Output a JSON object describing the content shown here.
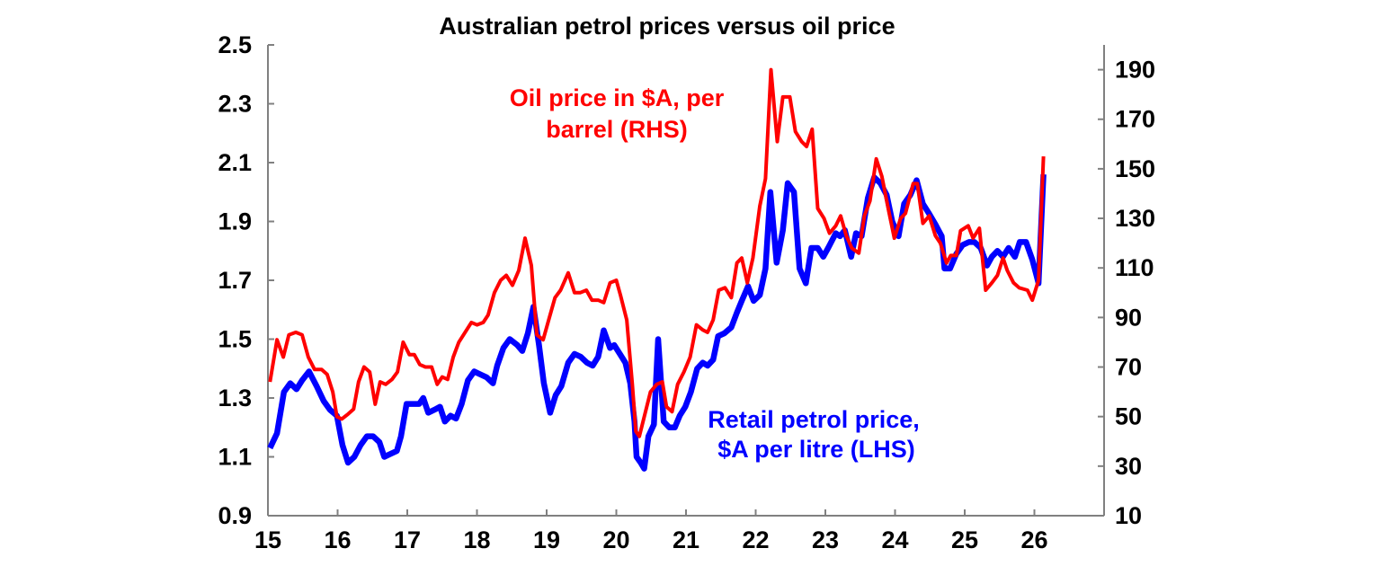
{
  "chart_data": {
    "type": "line",
    "title": "Australian petrol prices versus oil price",
    "xlabel": "",
    "ylabel": "",
    "xlim": [
      15,
      27
    ],
    "x_ticks": [
      "15",
      "16",
      "17",
      "18",
      "19",
      "20",
      "21",
      "22",
      "23",
      "24",
      "25",
      "26"
    ],
    "ylim_left": [
      0.9,
      2.5
    ],
    "y_ticks_left": [
      "0.9",
      "1.1",
      "1.3",
      "1.5",
      "1.7",
      "1.9",
      "2.1",
      "2.3",
      "2.5"
    ],
    "ylim_right": [
      10,
      200
    ],
    "y_ticks_right": [
      "10",
      "30",
      "50",
      "70",
      "90",
      "110",
      "130",
      "150",
      "170",
      "190"
    ],
    "grid": false,
    "legend": "none (inline labels)",
    "series": [
      {
        "name": "Oil price in $A, per barrel (RHS)",
        "label_lines": [
          "Oil price in $A, per",
          "barrel (RHS)"
        ],
        "axis": "right",
        "color": "#ff0000",
        "points": [
          [
            15.03,
            64
          ],
          [
            15.13,
            81
          ],
          [
            15.22,
            74
          ],
          [
            15.3,
            83
          ],
          [
            15.4,
            84
          ],
          [
            15.49,
            83
          ],
          [
            15.58,
            74
          ],
          [
            15.67,
            69
          ],
          [
            15.77,
            69
          ],
          [
            15.85,
            67
          ],
          [
            15.93,
            60
          ],
          [
            15.99,
            50
          ],
          [
            16.06,
            49
          ],
          [
            16.15,
            51
          ],
          [
            16.23,
            53
          ],
          [
            16.3,
            64
          ],
          [
            16.38,
            70
          ],
          [
            16.46,
            68
          ],
          [
            16.54,
            55
          ],
          [
            16.61,
            64
          ],
          [
            16.69,
            63
          ],
          [
            16.78,
            65
          ],
          [
            16.86,
            68
          ],
          [
            16.94,
            80
          ],
          [
            17.03,
            75
          ],
          [
            17.1,
            75
          ],
          [
            17.18,
            71
          ],
          [
            17.26,
            70
          ],
          [
            17.35,
            70
          ],
          [
            17.43,
            63
          ],
          [
            17.5,
            66
          ],
          [
            17.58,
            65
          ],
          [
            17.66,
            74
          ],
          [
            17.74,
            80
          ],
          [
            17.83,
            84
          ],
          [
            17.92,
            88
          ],
          [
            18.0,
            87
          ],
          [
            18.09,
            88
          ],
          [
            18.16,
            91
          ],
          [
            18.25,
            100
          ],
          [
            18.34,
            105
          ],
          [
            18.42,
            107
          ],
          [
            18.51,
            103
          ],
          [
            18.6,
            109
          ],
          [
            18.69,
            122
          ],
          [
            18.78,
            111
          ],
          [
            18.86,
            83
          ],
          [
            18.95,
            81
          ],
          [
            19.03,
            89
          ],
          [
            19.12,
            98
          ],
          [
            19.2,
            101
          ],
          [
            19.31,
            108
          ],
          [
            19.4,
            100
          ],
          [
            19.48,
            100
          ],
          [
            19.57,
            101
          ],
          [
            19.65,
            97
          ],
          [
            19.74,
            97
          ],
          [
            19.82,
            96
          ],
          [
            19.91,
            104
          ],
          [
            20.0,
            105
          ],
          [
            20.06,
            99
          ],
          [
            20.15,
            89
          ],
          [
            20.23,
            63
          ],
          [
            20.28,
            44
          ],
          [
            20.33,
            42
          ],
          [
            20.41,
            51
          ],
          [
            20.49,
            60
          ],
          [
            20.58,
            63
          ],
          [
            20.66,
            64
          ],
          [
            20.72,
            54
          ],
          [
            20.8,
            52
          ],
          [
            20.88,
            63
          ],
          [
            20.97,
            68
          ],
          [
            21.06,
            74
          ],
          [
            21.15,
            87
          ],
          [
            21.24,
            85
          ],
          [
            21.31,
            84
          ],
          [
            21.39,
            89
          ],
          [
            21.47,
            101
          ],
          [
            21.56,
            102
          ],
          [
            21.65,
            98
          ],
          [
            21.73,
            112
          ],
          [
            21.8,
            114
          ],
          [
            21.88,
            104
          ],
          [
            21.96,
            114
          ],
          [
            22.06,
            135
          ],
          [
            22.14,
            146
          ],
          [
            22.22,
            190
          ],
          [
            22.31,
            161
          ],
          [
            22.39,
            179
          ],
          [
            22.49,
            179
          ],
          [
            22.57,
            165
          ],
          [
            22.66,
            161
          ],
          [
            22.73,
            159
          ],
          [
            22.81,
            166
          ],
          [
            22.89,
            134
          ],
          [
            22.98,
            130
          ],
          [
            23.06,
            124
          ],
          [
            23.15,
            127
          ],
          [
            23.22,
            131
          ],
          [
            23.3,
            123
          ],
          [
            23.38,
            118
          ],
          [
            23.48,
            116
          ],
          [
            23.56,
            131
          ],
          [
            23.64,
            137
          ],
          [
            23.73,
            154
          ],
          [
            23.81,
            147
          ],
          [
            23.91,
            133
          ],
          [
            23.99,
            122
          ],
          [
            24.08,
            130
          ],
          [
            24.15,
            132
          ],
          [
            24.26,
            144
          ],
          [
            24.32,
            144
          ],
          [
            24.4,
            128
          ],
          [
            24.49,
            131
          ],
          [
            24.58,
            123
          ],
          [
            24.65,
            120
          ],
          [
            24.74,
            112
          ],
          [
            24.8,
            115
          ],
          [
            24.88,
            115
          ],
          [
            24.94,
            125
          ],
          [
            25.05,
            127
          ],
          [
            25.12,
            122
          ],
          [
            25.21,
            126
          ],
          [
            25.3,
            101
          ],
          [
            25.39,
            104
          ],
          [
            25.47,
            107
          ],
          [
            25.55,
            114
          ],
          [
            25.61,
            109
          ],
          [
            25.7,
            104
          ],
          [
            25.78,
            102
          ],
          [
            25.9,
            101
          ],
          [
            25.97,
            97
          ],
          [
            26.06,
            105
          ],
          [
            26.13,
            155
          ]
        ]
      },
      {
        "name": "Retail petrol price, $A per litre (LHS)",
        "label_lines": [
          "Retail petrol price,",
          "$A per litre (LHS)"
        ],
        "axis": "left",
        "color": "#0000ff",
        "points": [
          [
            15.03,
            1.13
          ],
          [
            15.13,
            1.18
          ],
          [
            15.23,
            1.32
          ],
          [
            15.32,
            1.35
          ],
          [
            15.41,
            1.33
          ],
          [
            15.49,
            1.36
          ],
          [
            15.59,
            1.39
          ],
          [
            15.7,
            1.34
          ],
          [
            15.8,
            1.29
          ],
          [
            15.89,
            1.26
          ],
          [
            15.99,
            1.24
          ],
          [
            16.07,
            1.14
          ],
          [
            16.15,
            1.08
          ],
          [
            16.24,
            1.1
          ],
          [
            16.33,
            1.14
          ],
          [
            16.42,
            1.17
          ],
          [
            16.51,
            1.17
          ],
          [
            16.6,
            1.15
          ],
          [
            16.67,
            1.1
          ],
          [
            16.76,
            1.11
          ],
          [
            16.85,
            1.12
          ],
          [
            16.91,
            1.17
          ],
          [
            16.99,
            1.28
          ],
          [
            17.08,
            1.28
          ],
          [
            17.17,
            1.28
          ],
          [
            17.23,
            1.3
          ],
          [
            17.3,
            1.25
          ],
          [
            17.39,
            1.26
          ],
          [
            17.47,
            1.27
          ],
          [
            17.54,
            1.22
          ],
          [
            17.62,
            1.24
          ],
          [
            17.7,
            1.23
          ],
          [
            17.78,
            1.28
          ],
          [
            17.87,
            1.36
          ],
          [
            17.96,
            1.39
          ],
          [
            18.05,
            1.38
          ],
          [
            18.14,
            1.37
          ],
          [
            18.23,
            1.35
          ],
          [
            18.29,
            1.41
          ],
          [
            18.38,
            1.47
          ],
          [
            18.47,
            1.5
          ],
          [
            18.58,
            1.48
          ],
          [
            18.65,
            1.46
          ],
          [
            18.73,
            1.52
          ],
          [
            18.81,
            1.61
          ],
          [
            18.89,
            1.48
          ],
          [
            18.96,
            1.35
          ],
          [
            19.05,
            1.25
          ],
          [
            19.13,
            1.31
          ],
          [
            19.21,
            1.34
          ],
          [
            19.31,
            1.42
          ],
          [
            19.4,
            1.45
          ],
          [
            19.49,
            1.44
          ],
          [
            19.58,
            1.42
          ],
          [
            19.66,
            1.41
          ],
          [
            19.74,
            1.44
          ],
          [
            19.82,
            1.53
          ],
          [
            19.91,
            1.47
          ],
          [
            19.97,
            1.48
          ],
          [
            20.05,
            1.45
          ],
          [
            20.13,
            1.42
          ],
          [
            20.2,
            1.35
          ],
          [
            20.26,
            1.22
          ],
          [
            20.29,
            1.1
          ],
          [
            20.35,
            1.08
          ],
          [
            20.4,
            1.06
          ],
          [
            20.46,
            1.17
          ],
          [
            20.54,
            1.21
          ],
          [
            20.6,
            1.5
          ],
          [
            20.68,
            1.22
          ],
          [
            20.76,
            1.2
          ],
          [
            20.84,
            1.2
          ],
          [
            20.91,
            1.24
          ],
          [
            20.99,
            1.27
          ],
          [
            21.07,
            1.32
          ],
          [
            21.16,
            1.4
          ],
          [
            21.24,
            1.42
          ],
          [
            21.31,
            1.41
          ],
          [
            21.39,
            1.43
          ],
          [
            21.46,
            1.51
          ],
          [
            21.55,
            1.52
          ],
          [
            21.65,
            1.54
          ],
          [
            21.73,
            1.59
          ],
          [
            21.8,
            1.63
          ],
          [
            21.89,
            1.68
          ],
          [
            21.97,
            1.63
          ],
          [
            22.06,
            1.65
          ],
          [
            22.14,
            1.74
          ],
          [
            22.21,
            2.0
          ],
          [
            22.3,
            1.76
          ],
          [
            22.39,
            1.87
          ],
          [
            22.46,
            2.03
          ],
          [
            22.55,
            2.0
          ],
          [
            22.63,
            1.74
          ],
          [
            22.72,
            1.69
          ],
          [
            22.8,
            1.81
          ],
          [
            22.89,
            1.81
          ],
          [
            22.97,
            1.78
          ],
          [
            23.04,
            1.81
          ],
          [
            23.15,
            1.86
          ],
          [
            23.21,
            1.85
          ],
          [
            23.28,
            1.87
          ],
          [
            23.37,
            1.78
          ],
          [
            23.44,
            1.86
          ],
          [
            23.52,
            1.85
          ],
          [
            23.61,
            1.98
          ],
          [
            23.7,
            2.05
          ],
          [
            23.79,
            2.03
          ],
          [
            23.88,
            1.99
          ],
          [
            23.96,
            1.9
          ],
          [
            24.05,
            1.85
          ],
          [
            24.13,
            1.96
          ],
          [
            24.22,
            1.99
          ],
          [
            24.31,
            2.04
          ],
          [
            24.4,
            1.96
          ],
          [
            24.48,
            1.93
          ],
          [
            24.58,
            1.89
          ],
          [
            24.67,
            1.85
          ],
          [
            24.71,
            1.74
          ],
          [
            24.79,
            1.74
          ],
          [
            24.88,
            1.79
          ],
          [
            24.97,
            1.82
          ],
          [
            25.06,
            1.83
          ],
          [
            25.14,
            1.83
          ],
          [
            25.23,
            1.81
          ],
          [
            25.32,
            1.75
          ],
          [
            25.39,
            1.78
          ],
          [
            25.47,
            1.8
          ],
          [
            25.55,
            1.78
          ],
          [
            25.63,
            1.81
          ],
          [
            25.72,
            1.78
          ],
          [
            25.79,
            1.83
          ],
          [
            25.88,
            1.83
          ],
          [
            25.97,
            1.77
          ],
          [
            26.06,
            1.69
          ],
          [
            26.13,
            2.06
          ]
        ]
      }
    ]
  }
}
